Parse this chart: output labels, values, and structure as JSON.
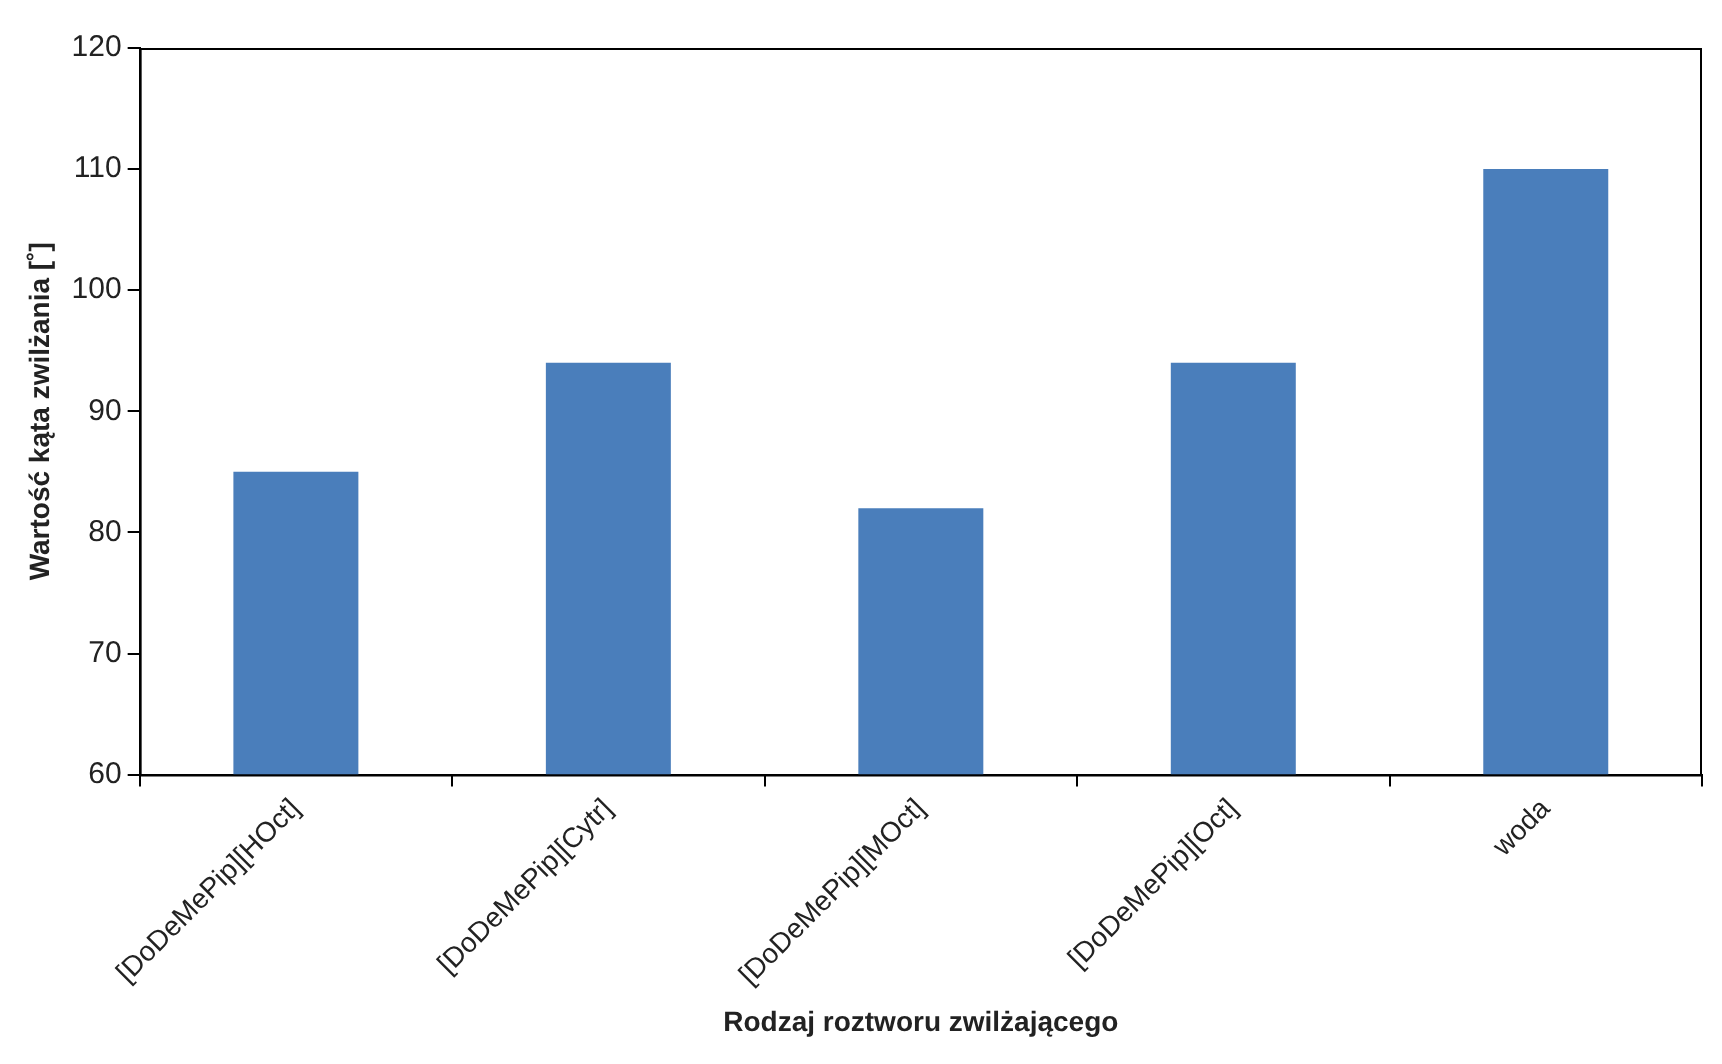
{
  "chart_data": {
    "type": "bar",
    "xlabel": "Rodzaj roztworu zwilżającego",
    "ylabel": "Wartość kąta zwilżania [˚]",
    "categories": [
      "[DoDeMePip][HOct]",
      "[DoDeMePip][Cytr]",
      "[DoDeMePip][MOct]",
      "[DoDeMePip][Oct]",
      "woda"
    ],
    "values": [
      85,
      94,
      82,
      94,
      110
    ],
    "color": "#4a7ebb",
    "ylim": [
      60,
      120
    ],
    "yticks": [
      60,
      70,
      80,
      90,
      100,
      110,
      120
    ],
    "grid": false,
    "legend": false
  }
}
